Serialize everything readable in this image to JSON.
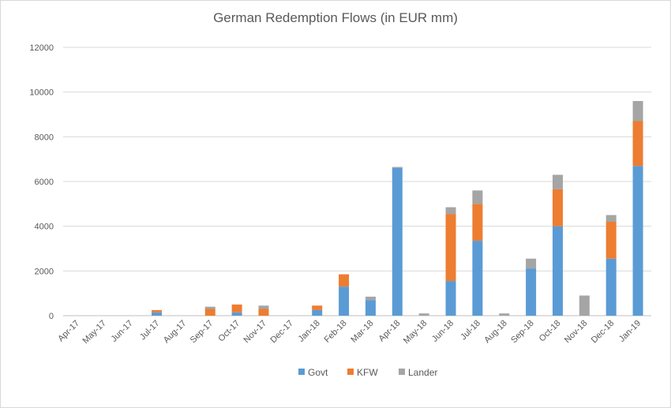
{
  "chart_data": {
    "type": "bar",
    "stacked": true,
    "title": "German Redemption Flows (in EUR mm)",
    "xlabel": "",
    "ylabel": "",
    "ylim": [
      0,
      12000
    ],
    "yticks": [
      "0",
      "2000",
      "4000",
      "6000",
      "8000",
      "10000",
      "12000"
    ],
    "grid": true,
    "legend_position": "bottom",
    "categories": [
      "Apr-17",
      "May-17",
      "Jun-17",
      "Jul-17",
      "Aug-17",
      "Sep-17",
      "Oct-17",
      "Nov-17",
      "Dec-17",
      "Jan-18",
      "Feb-18",
      "Mar-18",
      "Apr-18",
      "May-18",
      "Jun-18",
      "Jul-18",
      "Aug-18",
      "Sep-18",
      "Oct-18",
      "Nov-18",
      "Dec-18",
      "Jan-19"
    ],
    "series": [
      {
        "name": "Govt",
        "color": "#5b9bd5",
        "values": [
          0,
          0,
          0,
          150,
          0,
          0,
          150,
          0,
          0,
          250,
          1300,
          700,
          6600,
          0,
          1550,
          3350,
          0,
          2100,
          4000,
          0,
          2550,
          6700
        ]
      },
      {
        "name": "KFW",
        "color": "#ed7d31",
        "values": [
          0,
          0,
          0,
          100,
          0,
          300,
          350,
          300,
          0,
          200,
          550,
          0,
          0,
          0,
          3000,
          1650,
          0,
          0,
          1650,
          0,
          1650,
          2000
        ]
      },
      {
        "name": "Lander",
        "color": "#a5a5a5",
        "values": [
          0,
          0,
          0,
          0,
          0,
          100,
          0,
          150,
          0,
          0,
          0,
          150,
          50,
          100,
          300,
          600,
          100,
          450,
          650,
          900,
          300,
          900
        ]
      }
    ]
  }
}
